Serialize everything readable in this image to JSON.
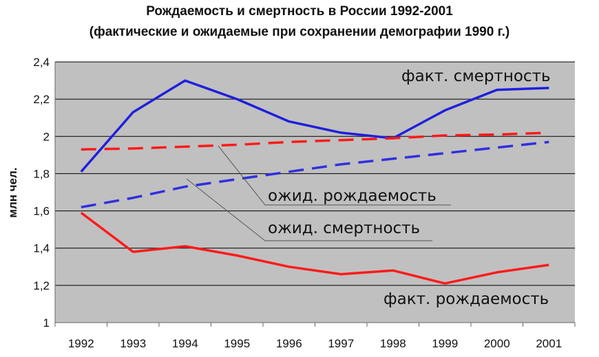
{
  "chart_data": {
    "type": "line",
    "title": "Рождаемость и смертность в России 1992-2001",
    "subtitle": "(фактические и ожидаемые при сохранении демографии 1990 г.)",
    "ylabel": "млн чел.",
    "xlabel": "",
    "ylim": [
      1,
      2.4
    ],
    "yticks": [
      "1",
      "1,2",
      "1,4",
      "1,6",
      "1,8",
      "2",
      "2,2",
      "2,4"
    ],
    "ytick_values": [
      1,
      1.2,
      1.4,
      1.6,
      1.8,
      2,
      2.2,
      2.4
    ],
    "categories": [
      "1992",
      "1993",
      "1994",
      "1995",
      "1996",
      "1997",
      "1998",
      "1999",
      "2000",
      "2001"
    ],
    "grid": true,
    "series": [
      {
        "name": "факт. смертность",
        "color": "#1f1fdc",
        "style": "solid",
        "values": [
          1.81,
          2.13,
          2.3,
          2.2,
          2.08,
          2.02,
          1.99,
          2.14,
          2.25,
          2.26
        ]
      },
      {
        "name": "ожид. смертность",
        "color": "#ff1a1a",
        "style": "dashed",
        "values": [
          1.93,
          1.935,
          1.945,
          1.955,
          1.97,
          1.98,
          1.99,
          2.005,
          2.01,
          2.02
        ]
      },
      {
        "name": "ожид. рождаемость",
        "color": "#2f2fe0",
        "style": "dashed",
        "values": [
          1.62,
          1.67,
          1.73,
          1.77,
          1.81,
          1.85,
          1.88,
          1.91,
          1.94,
          1.97
        ]
      },
      {
        "name": "факт. рождаемость",
        "color": "#ff1a1a",
        "style": "solid",
        "values": [
          1.59,
          1.38,
          1.41,
          1.36,
          1.3,
          1.26,
          1.28,
          1.21,
          1.27,
          1.31
        ]
      }
    ],
    "annotations": {
      "fact_mortality": "факт. смертность",
      "exp_birth": "ожид. рождаемость",
      "exp_mortality": "ожид. смертность",
      "fact_birth": "факт. рождаемость"
    },
    "colors": {
      "plot_background": "#c0c0c0",
      "grid": "#000000"
    }
  }
}
